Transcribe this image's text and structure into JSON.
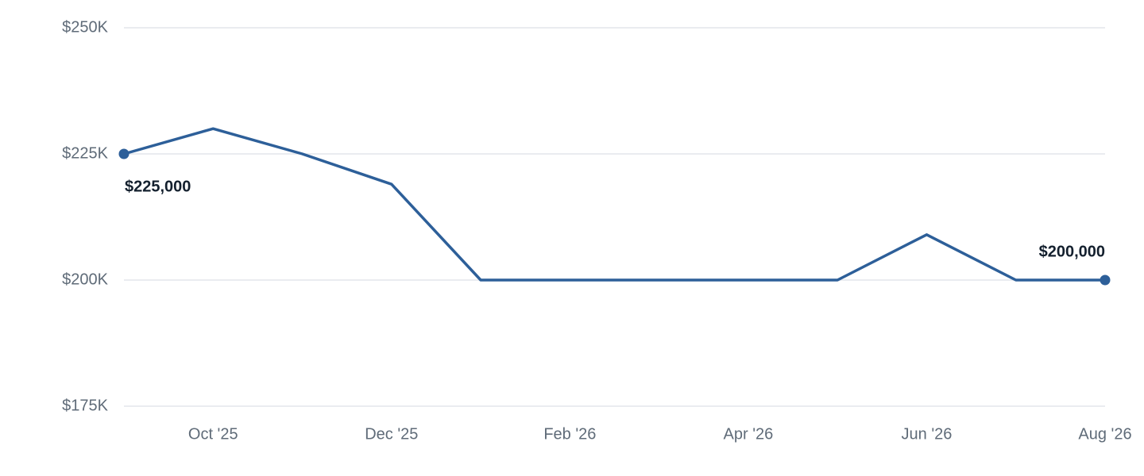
{
  "chart_data": {
    "type": "line",
    "categories": [
      null,
      "Oct '25",
      null,
      "Dec '25",
      null,
      "Feb '26",
      null,
      "Apr '26",
      null,
      "Jun '26",
      null,
      "Aug '26"
    ],
    "values": [
      225000,
      230000,
      225000,
      219000,
      200000,
      200000,
      200000,
      200000,
      200000,
      209000,
      200000,
      200000
    ],
    "value_labels": [
      "$225,000",
      null,
      null,
      null,
      null,
      null,
      null,
      null,
      null,
      null,
      null,
      "$200,000"
    ],
    "color": "#2d5f99",
    "ylim": [
      175000,
      250000
    ],
    "yticks": [
      {
        "value": 175000,
        "label": "$175K"
      },
      {
        "value": 200000,
        "label": "$200K"
      },
      {
        "value": 225000,
        "label": "$225K"
      },
      {
        "value": 250000,
        "label": "$250K"
      }
    ],
    "grid": true,
    "end_markers": true
  }
}
